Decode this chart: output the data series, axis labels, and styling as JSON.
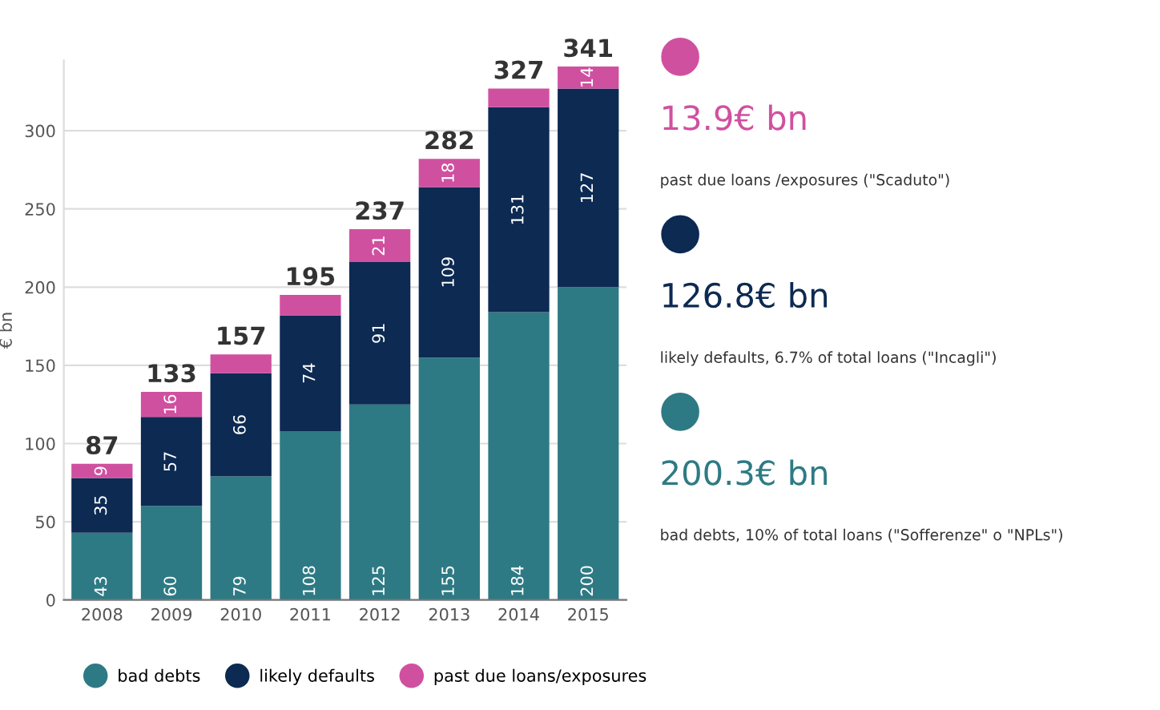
{
  "chart_data": [
    {
      "type": "bar",
      "stacked": true,
      "ylabel": "€ bn",
      "categories": [
        "2008",
        "2009",
        "2010",
        "2011",
        "2012",
        "2013",
        "2014",
        "2015"
      ],
      "series": [
        {
          "name": "bad debts",
          "color": "#2e7a84",
          "values": [
            43,
            60,
            79,
            108,
            125,
            155,
            184,
            200
          ],
          "value_labels": [
            "43",
            "60",
            "79",
            "108",
            "125",
            "155",
            "184",
            "200"
          ]
        },
        {
          "name": "likely defaults",
          "color": "#0c2a52",
          "values": [
            35,
            57,
            66,
            74,
            91,
            109,
            131,
            127
          ],
          "value_labels": [
            "35",
            "57",
            "66",
            "74",
            "91",
            "109",
            "131",
            "127"
          ]
        },
        {
          "name": "past due loans/exposures",
          "color": "#d050a0",
          "values": [
            9,
            16,
            12,
            13,
            21,
            18,
            12,
            14
          ],
          "value_labels": [
            "9",
            "16",
            null,
            null,
            "21",
            "18",
            null,
            "14"
          ]
        }
      ],
      "totals": [
        "87",
        "133",
        "157",
        "195",
        "237",
        "282",
        "327",
        "341"
      ],
      "ylim": [
        0,
        345
      ],
      "yticks": [
        0,
        50,
        100,
        150,
        200,
        250,
        300
      ],
      "grid": "y",
      "legend": "bottom",
      "marker": "circle"
    },
    {
      "type": "other",
      "colors": [
        "#d050a0",
        "#0c2a52",
        "#2e7a84"
      ],
      "annotations": [
        "13.9€ bn",
        "past due loans /exposures (\"Scaduto\")",
        "126.8€ bn",
        "likely defaults, 6.7% of total loans (\"Incagli\")",
        "200.3€ bn",
        "bad debts, 10% of total loans (\"Sofferenze\" o \"NPLs\")"
      ]
    }
  ]
}
